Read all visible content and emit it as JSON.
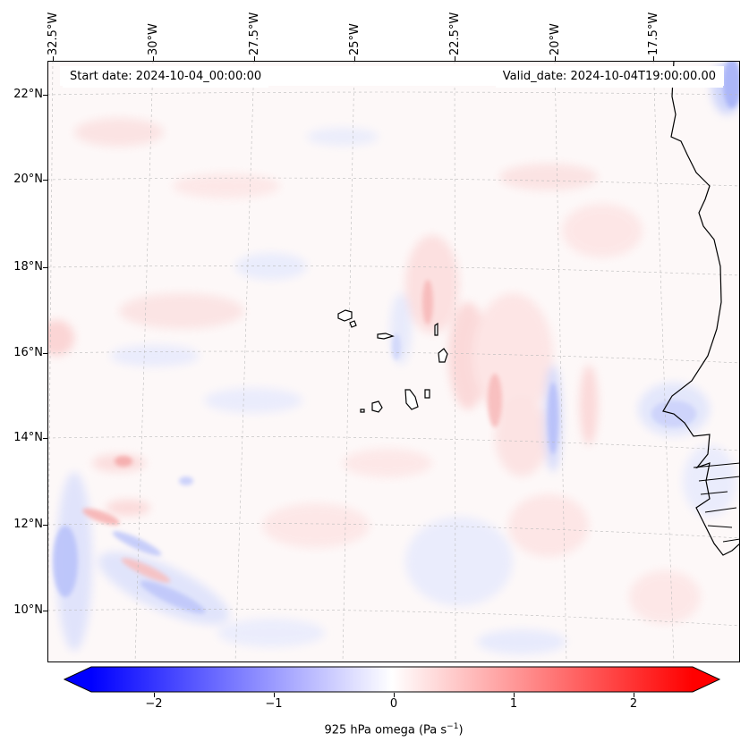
{
  "map": {
    "annotations": {
      "start": "Start date: 2024-10-04_00:00:00",
      "valid": "Valid_date: 2024-10-04T19:00:00.00"
    },
    "lon_ticks": [
      "32.5°W",
      "30°W",
      "27.5°W",
      "25°W",
      "22.5°W",
      "20°W",
      "17.5°W"
    ],
    "lat_ticks": [
      "22°N",
      "20°N",
      "18°N",
      "16°N",
      "14°N",
      "12°N",
      "10°N"
    ],
    "extent": {
      "lon_min": -32.7,
      "lon_max": -15.5,
      "lat_min": 8.9,
      "lat_max": 22.8
    }
  },
  "colorbar": {
    "label": "925 hPa omega (Pa s",
    "label_exp": "−1",
    "label_close": ")",
    "ticks": [
      "−2",
      "−1",
      "0",
      "1",
      "2"
    ],
    "tick_values": [
      -2,
      -1,
      0,
      1,
      2
    ],
    "range": [
      -2.5,
      2.5
    ],
    "colormap": "bwr",
    "extend": "both",
    "colors": {
      "min": "#0000ff",
      "mid": "#ffffff",
      "max": "#ff0000"
    }
  }
}
